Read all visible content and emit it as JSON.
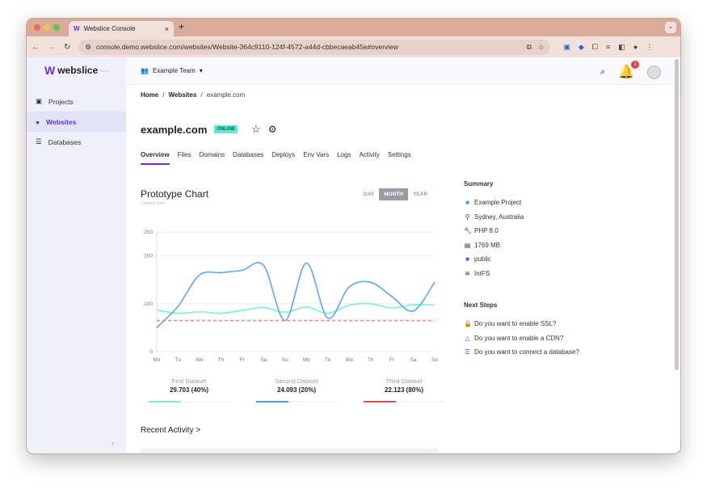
{
  "browser": {
    "tab_title": "Webslice Console",
    "url": "console.demo.webslice.com/websites/Website-364c9110-124f-4572-a44d-cbbecaeab45e#overview",
    "ext_badge": "1"
  },
  "app": {
    "logo": "webslice",
    "logo_badge": "BETA",
    "team": "Example Team",
    "notif_count": "1"
  },
  "sidebar": {
    "items": [
      {
        "label": "Projects"
      },
      {
        "label": "Websites"
      },
      {
        "label": "Databases"
      }
    ]
  },
  "breadcrumb": [
    "Home",
    "Websites",
    "example.com"
  ],
  "site": {
    "name": "example.com",
    "status": "ONLINE"
  },
  "tabs": [
    "Overview",
    "Files",
    "Domains",
    "Databases",
    "Deploys",
    "Env Vars",
    "Logs",
    "Activity",
    "Settings"
  ],
  "chart_card": {
    "title": "Prototype Chart",
    "subtitle": "Coming Soon",
    "ranges": [
      "DAY",
      "MONTH",
      "YEAR"
    ],
    "selected": "MONTH"
  },
  "chart_data": {
    "type": "line",
    "x": [
      "Mo",
      "Tu",
      "We",
      "Th",
      "Fr",
      "Sa",
      "Su",
      "Mo",
      "Tu",
      "We",
      "Th",
      "Fr",
      "Sa",
      "Su"
    ],
    "ylim": [
      0,
      250
    ],
    "yticks": [
      0,
      100,
      200,
      250
    ],
    "series": [
      {
        "name": "First Dataset",
        "color": "#7af0d4",
        "values": [
          87,
          80,
          83,
          80,
          86,
          92,
          82,
          93,
          80,
          97,
          100,
          91,
          98,
          97
        ]
      },
      {
        "name": "Second Dataset",
        "color": "#5aa8f5",
        "values": [
          50,
          95,
          160,
          165,
          170,
          180,
          65,
          185,
          70,
          135,
          145,
          115,
          85,
          145
        ]
      },
      {
        "name": "Third Dataset",
        "color": "#f08b8b",
        "dashed": true,
        "values": [
          65,
          65,
          65,
          65,
          65,
          65,
          65,
          65,
          65,
          65,
          65,
          65,
          65,
          65
        ]
      }
    ]
  },
  "legend": [
    {
      "name": "First Dataset",
      "value": "29.703 (40%)",
      "percent": 40,
      "color": "#7af0d4"
    },
    {
      "name": "Second Dataset",
      "value": "24.093 (20%)",
      "percent": 40,
      "color": "#4a9af5"
    },
    {
      "name": "Third Dataset",
      "value": "22.123 (80%)",
      "percent": 40,
      "color": "#e5484d"
    }
  ],
  "recent": "Recent Activity >",
  "summary": {
    "title": "Summary",
    "items": [
      "Example Project",
      "Sydney, Australia",
      "PHP 8.0",
      "1769 MB",
      "public",
      "IntFS"
    ]
  },
  "next_steps": {
    "title": "Next Steps",
    "items": [
      "Do you want to enable SSL?",
      "Do you want to enable a CDN?",
      "Do you want to connect a database?"
    ]
  }
}
